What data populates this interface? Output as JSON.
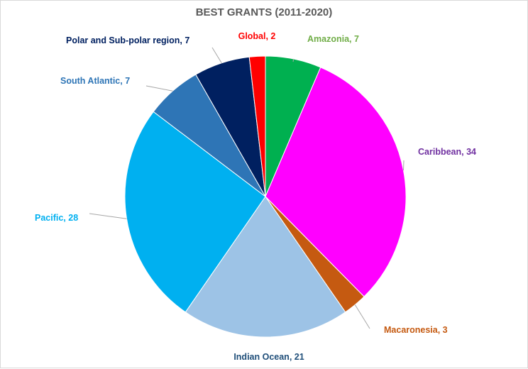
{
  "chart_data": {
    "type": "pie",
    "title": "BEST GRANTS (2011-2020)",
    "slices": [
      {
        "name": "Amazonia",
        "value": 7,
        "color": "#00b050",
        "label": "Amazonia, 7",
        "label_color": "#70ad47"
      },
      {
        "name": "Caribbean",
        "value": 34,
        "color": "#ff00ff",
        "label": "Caribbean, 34",
        "label_color": "#7030a0"
      },
      {
        "name": "Macaronesia",
        "value": 3,
        "color": "#c55a11",
        "label": "Macaronesia, 3",
        "label_color": "#c55a11"
      },
      {
        "name": "Indian Ocean",
        "value": 21,
        "color": "#9dc3e6",
        "label": "Indian Ocean, 21",
        "label_color": "#1f4e79"
      },
      {
        "name": "Pacific",
        "value": 28,
        "color": "#00b0f0",
        "label": "Pacific,  28",
        "label_color": "#00b0f0"
      },
      {
        "name": "South Atlantic",
        "value": 7,
        "color": "#2e75b6",
        "label": "South Atlantic, 7",
        "label_color": "#2e75b6"
      },
      {
        "name": "Polar and Sub-polar region",
        "value": 7,
        "color": "#002060",
        "label": "Polar and Sub-polar region, 7",
        "label_color": "#002060"
      },
      {
        "name": "Global",
        "value": 2,
        "color": "#ff0000",
        "label": "Global, 2",
        "label_color": "#ff0000"
      }
    ],
    "legend": "none",
    "data_labels": "outside with leader lines"
  }
}
